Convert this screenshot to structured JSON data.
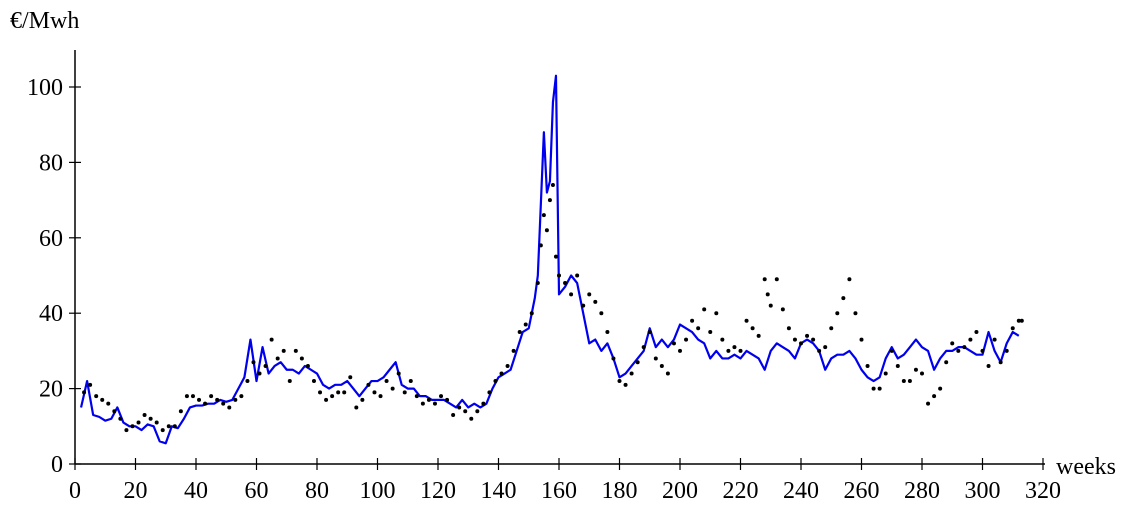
{
  "chart_data": {
    "type": "line",
    "ylabel": "€/Mwh",
    "xlabel": "weeks",
    "xlim": [
      0,
      320
    ],
    "ylim": [
      0,
      100
    ],
    "xticks": [
      0,
      20,
      40,
      60,
      80,
      100,
      120,
      140,
      160,
      180,
      200,
      220,
      240,
      260,
      280,
      300,
      320
    ],
    "yticks": [
      0,
      20,
      40,
      60,
      80,
      100
    ],
    "series": [
      {
        "type": "line",
        "color": "#0000ee",
        "x": [
          2,
          4,
          6,
          8,
          10,
          12,
          14,
          16,
          18,
          20,
          22,
          24,
          26,
          28,
          30,
          32,
          34,
          36,
          38,
          40,
          42,
          44,
          46,
          48,
          50,
          52,
          54,
          56,
          58,
          60,
          62,
          64,
          66,
          68,
          70,
          72,
          74,
          76,
          78,
          80,
          82,
          84,
          86,
          88,
          90,
          92,
          94,
          96,
          98,
          100,
          102,
          104,
          106,
          108,
          110,
          112,
          114,
          116,
          118,
          120,
          122,
          124,
          126,
          128,
          130,
          132,
          134,
          136,
          138,
          140,
          142,
          144,
          146,
          148,
          150,
          152,
          153,
          155,
          156,
          157,
          158,
          159,
          160,
          162,
          164,
          166,
          168,
          170,
          172,
          174,
          176,
          178,
          180,
          182,
          184,
          186,
          188,
          190,
          192,
          194,
          196,
          198,
          200,
          202,
          204,
          206,
          208,
          210,
          212,
          214,
          216,
          218,
          220,
          222,
          224,
          226,
          228,
          230,
          232,
          234,
          236,
          238,
          240,
          242,
          244,
          246,
          248,
          250,
          252,
          254,
          256,
          258,
          260,
          262,
          264,
          266,
          268,
          270,
          272,
          274,
          276,
          278,
          280,
          282,
          284,
          286,
          288,
          290,
          292,
          294,
          296,
          298,
          300,
          302,
          304,
          306,
          308,
          310,
          312
        ],
        "values": [
          15,
          22,
          13,
          12.5,
          11.5,
          12,
          15,
          11,
          10,
          10,
          9,
          10.5,
          10,
          6,
          5.5,
          10,
          9.5,
          12,
          15,
          15.5,
          15.5,
          16,
          16,
          17,
          16.5,
          17,
          20,
          23,
          33,
          22,
          31,
          24,
          26,
          27,
          25,
          25,
          24,
          26,
          25,
          24,
          21,
          20,
          21,
          21,
          22,
          20,
          18,
          20,
          22,
          22,
          23,
          25,
          27,
          21,
          20,
          20,
          18,
          18,
          17,
          17,
          17,
          16,
          15,
          17,
          15,
          16,
          15,
          16,
          20,
          23,
          24,
          25,
          30,
          35,
          36,
          44,
          50,
          88,
          72,
          75,
          96,
          103,
          45,
          47,
          50,
          48,
          40,
          32,
          33,
          30,
          32,
          28,
          23,
          24,
          26,
          28,
          30,
          36,
          31,
          33,
          31,
          33,
          37,
          36,
          35,
          33,
          32,
          28,
          30,
          28,
          28,
          29,
          28,
          30,
          29,
          28,
          25,
          30,
          32,
          31,
          30,
          28,
          32,
          33,
          32,
          30,
          25,
          28,
          29,
          29,
          30,
          28,
          25,
          23,
          22,
          23,
          28,
          31,
          28,
          29,
          31,
          33,
          31,
          30,
          25,
          28,
          30,
          30,
          31,
          31,
          30,
          29,
          29,
          35,
          30,
          27,
          32,
          35,
          34
        ]
      },
      {
        "type": "scatter",
        "color": "#000000",
        "x": [
          3,
          5,
          7,
          9,
          11,
          13,
          15,
          17,
          19,
          21,
          23,
          25,
          27,
          29,
          31,
          33,
          35,
          37,
          39,
          41,
          43,
          45,
          47,
          49,
          51,
          53,
          55,
          57,
          59,
          61,
          63,
          65,
          67,
          69,
          71,
          73,
          75,
          77,
          79,
          81,
          83,
          85,
          87,
          89,
          91,
          93,
          95,
          97,
          99,
          101,
          103,
          105,
          107,
          109,
          111,
          113,
          115,
          117,
          119,
          121,
          123,
          125,
          127,
          129,
          131,
          133,
          135,
          137,
          139,
          141,
          143,
          145,
          147,
          149,
          151,
          153,
          154,
          155,
          156,
          157,
          158,
          159,
          160,
          162,
          164,
          166,
          168,
          170,
          172,
          174,
          176,
          178,
          180,
          182,
          184,
          186,
          188,
          190,
          192,
          194,
          196,
          198,
          200,
          202,
          204,
          206,
          208,
          210,
          212,
          214,
          216,
          218,
          220,
          222,
          224,
          226,
          228,
          229,
          230,
          232,
          234,
          236,
          238,
          240,
          242,
          244,
          246,
          248,
          250,
          252,
          254,
          256,
          258,
          260,
          262,
          264,
          266,
          268,
          270,
          272,
          274,
          276,
          278,
          280,
          282,
          284,
          286,
          288,
          290,
          292,
          294,
          296,
          298,
          300,
          302,
          304,
          306,
          308,
          310,
          312,
          313
        ],
        "values": [
          19,
          21,
          18,
          17,
          16,
          14,
          12,
          9,
          10,
          11,
          13,
          12,
          11,
          9,
          10,
          10,
          14,
          18,
          18,
          17,
          16,
          18,
          17,
          16,
          15,
          17,
          18,
          22,
          27,
          24,
          26,
          33,
          28,
          30,
          22,
          30,
          28,
          26,
          22,
          19,
          17,
          18,
          19,
          19,
          23,
          15,
          17,
          21,
          19,
          18,
          22,
          20,
          24,
          19,
          22,
          18,
          16,
          17,
          16,
          18,
          17,
          13,
          15,
          14,
          12,
          14,
          16,
          19,
          22,
          24,
          26,
          30,
          35,
          37,
          40,
          48,
          58,
          66,
          62,
          70,
          74,
          55,
          50,
          48,
          45,
          50,
          42,
          45,
          43,
          40,
          35,
          28,
          22,
          21,
          24,
          27,
          31,
          35,
          28,
          26,
          24,
          32,
          30,
          33,
          38,
          36,
          41,
          35,
          40,
          33,
          30,
          31,
          30,
          38,
          36,
          34,
          49,
          45,
          42,
          49,
          41,
          36,
          33,
          32,
          34,
          33,
          30,
          31,
          36,
          40,
          44,
          49,
          40,
          33,
          26,
          20,
          20,
          24,
          30,
          26,
          22,
          22,
          25,
          24,
          16,
          18,
          20,
          27,
          32,
          30,
          31,
          33,
          35,
          30,
          26,
          33,
          27,
          30,
          36,
          38,
          38
        ]
      }
    ]
  }
}
